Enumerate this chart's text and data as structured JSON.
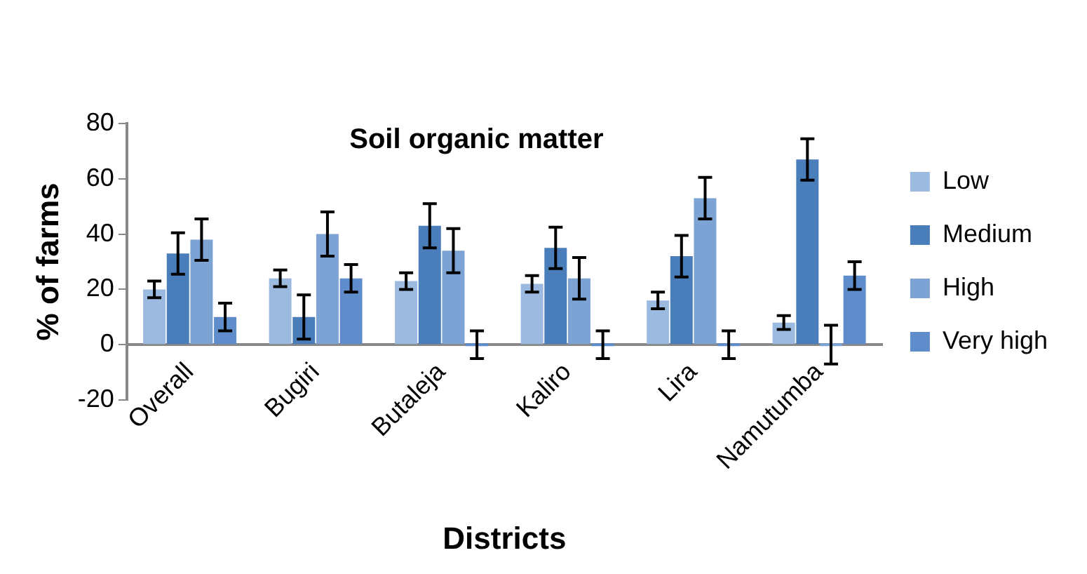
{
  "chart_data": {
    "type": "bar",
    "title": "Soil organic matter",
    "xlabel": "Districts",
    "ylabel": "% of farms",
    "categories": [
      "Overall",
      "Bugiri",
      "Butaleja",
      "Kaliro",
      "Lira",
      "Namutumba"
    ],
    "series": [
      {
        "name": "Low",
        "color": "#9cb9e0",
        "values": [
          20,
          24,
          23,
          22,
          16,
          8
        ],
        "errors": [
          3,
          3,
          3,
          3,
          3,
          2.5
        ]
      },
      {
        "name": "Medium",
        "color": "#4a7ebb",
        "values": [
          33,
          10,
          43,
          35,
          32,
          67
        ],
        "errors": [
          7.5,
          8,
          8,
          7.5,
          7.5,
          7.5
        ]
      },
      {
        "name": "High",
        "color": "#7da2d4",
        "values": [
          38,
          40,
          34,
          24,
          53,
          0
        ],
        "errors": [
          7.5,
          8,
          8,
          7.5,
          7.5,
          7
        ]
      },
      {
        "name": "Very high",
        "color": "#5f8ccb",
        "values": [
          10,
          24,
          0,
          0,
          0,
          25
        ],
        "errors": [
          5,
          5,
          5,
          5,
          5,
          5
        ]
      }
    ],
    "ylim": [
      -20,
      80
    ],
    "yticks": [
      -20,
      0,
      20,
      40,
      60,
      80
    ],
    "grid": false,
    "legend": "right"
  }
}
